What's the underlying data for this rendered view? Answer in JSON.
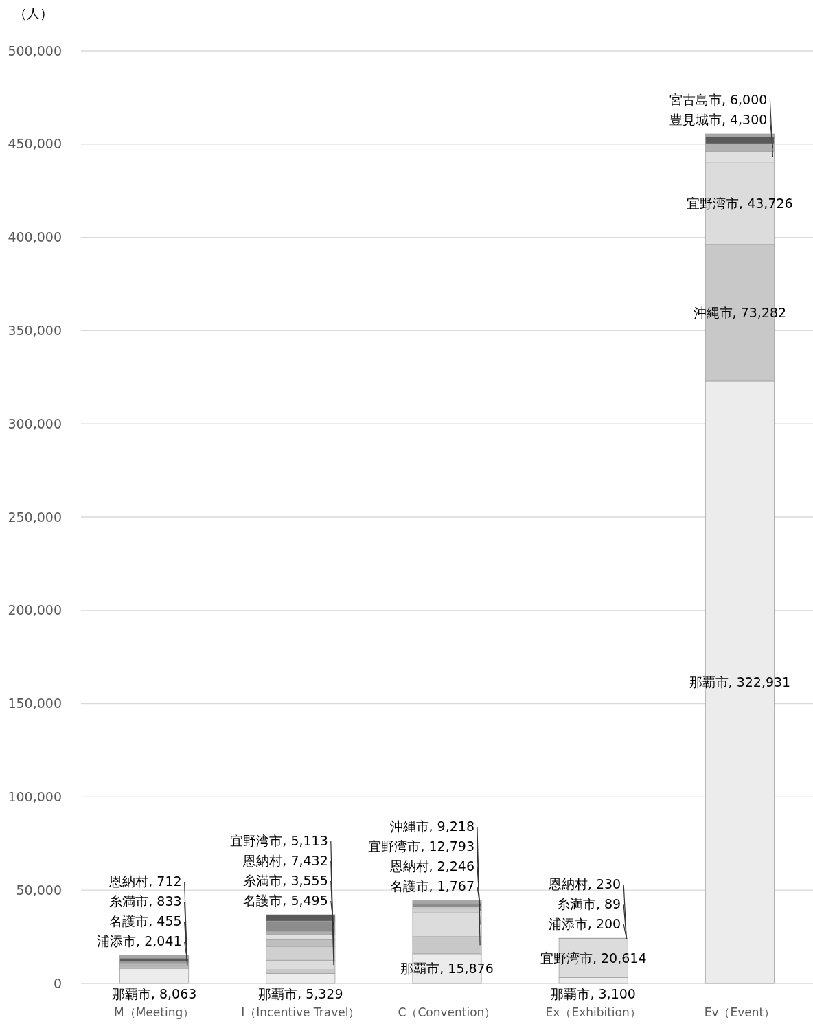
{
  "chart_data": {
    "type": "bar",
    "stacked": true,
    "ylabel": "（人）",
    "categories": [
      "M（Meeting）",
      "I（Incentive Travel）",
      "C（Convention）",
      "Ex（Exhibition）",
      "Ev（Event）"
    ],
    "ylim": [
      0,
      500000
    ],
    "yticks": [
      {
        "value": 0,
        "label": "0"
      },
      {
        "value": 50000,
        "label": "50,000"
      },
      {
        "value": 100000,
        "label": "100,000"
      },
      {
        "value": 150000,
        "label": "150,000"
      },
      {
        "value": 200000,
        "label": "200,000"
      },
      {
        "value": 250000,
        "label": "250,000"
      },
      {
        "value": 300000,
        "label": "300,000"
      },
      {
        "value": 350000,
        "label": "350,000"
      },
      {
        "value": 400000,
        "label": "400,000"
      },
      {
        "value": 450000,
        "label": "450,000"
      },
      {
        "value": 500000,
        "label": "500,000"
      }
    ],
    "grid": "y",
    "series": [
      {
        "color": "#ececec",
        "values": [
          8063,
          5329,
          15876,
          3100,
          322931
        ],
        "value_labels": [
          "那覇市, 8,063",
          "那覇市, 5,329",
          "那覇市, 15,876",
          "那覇市, 3,100",
          "那覇市, 322,931"
        ]
      },
      {
        "color": "#c8c8c8",
        "values": [
          null,
          2000,
          9218,
          null,
          73282
        ],
        "value_labels": [
          null,
          null,
          "沖縄市, 9,218",
          null,
          "沖縄市, 73,282"
        ]
      },
      {
        "color": "#dcdcdc",
        "values": [
          800,
          5113,
          12793,
          20614,
          43726
        ],
        "value_labels": [
          null,
          "宜野湾市, 5,113",
          "宜野湾市, 12,793",
          "宜野湾市, 20,614",
          "宜野湾市, 43,726"
        ]
      },
      {
        "color": "#d0d0d0",
        "values": [
          712,
          7432,
          2246,
          230,
          null
        ],
        "value_labels": [
          "恩納村, 712",
          "恩納村, 7,432",
          "恩納村, 2,246",
          "恩納村, 230",
          null
        ]
      },
      {
        "color": "#bfbfbf",
        "values": [
          833,
          3555,
          null,
          89,
          null
        ],
        "value_labels": [
          "糸満市, 833",
          "糸満市, 3,555",
          null,
          "糸満市, 89",
          null
        ]
      },
      {
        "color": "#e0e0e0",
        "values": [
          null,
          3000,
          800,
          null,
          6000
        ],
        "value_labels": [
          null,
          null,
          null,
          null,
          "宮古島市, 6,000"
        ]
      },
      {
        "color": "#b0b0b0",
        "values": [
          700,
          1500,
          null,
          null,
          4300
        ],
        "value_labels": [
          null,
          null,
          null,
          null,
          "豊見城市, 4,300"
        ]
      },
      {
        "color": "#8c8c8c",
        "values": [
          455,
          5495,
          1767,
          null,
          null
        ],
        "value_labels": [
          "名護市, 455",
          "名護市, 5,495",
          "名護市, 1,767",
          null,
          null
        ]
      },
      {
        "color": "#5a5a5a",
        "values": [
          2041,
          3400,
          null,
          200,
          3700
        ],
        "value_labels": [
          "浦添市, 2,041",
          null,
          null,
          "浦添市, 200",
          null
        ]
      },
      {
        "color": "#a6a6a6",
        "values": [
          1500,
          null,
          1800,
          null,
          1500
        ]
      }
    ]
  }
}
